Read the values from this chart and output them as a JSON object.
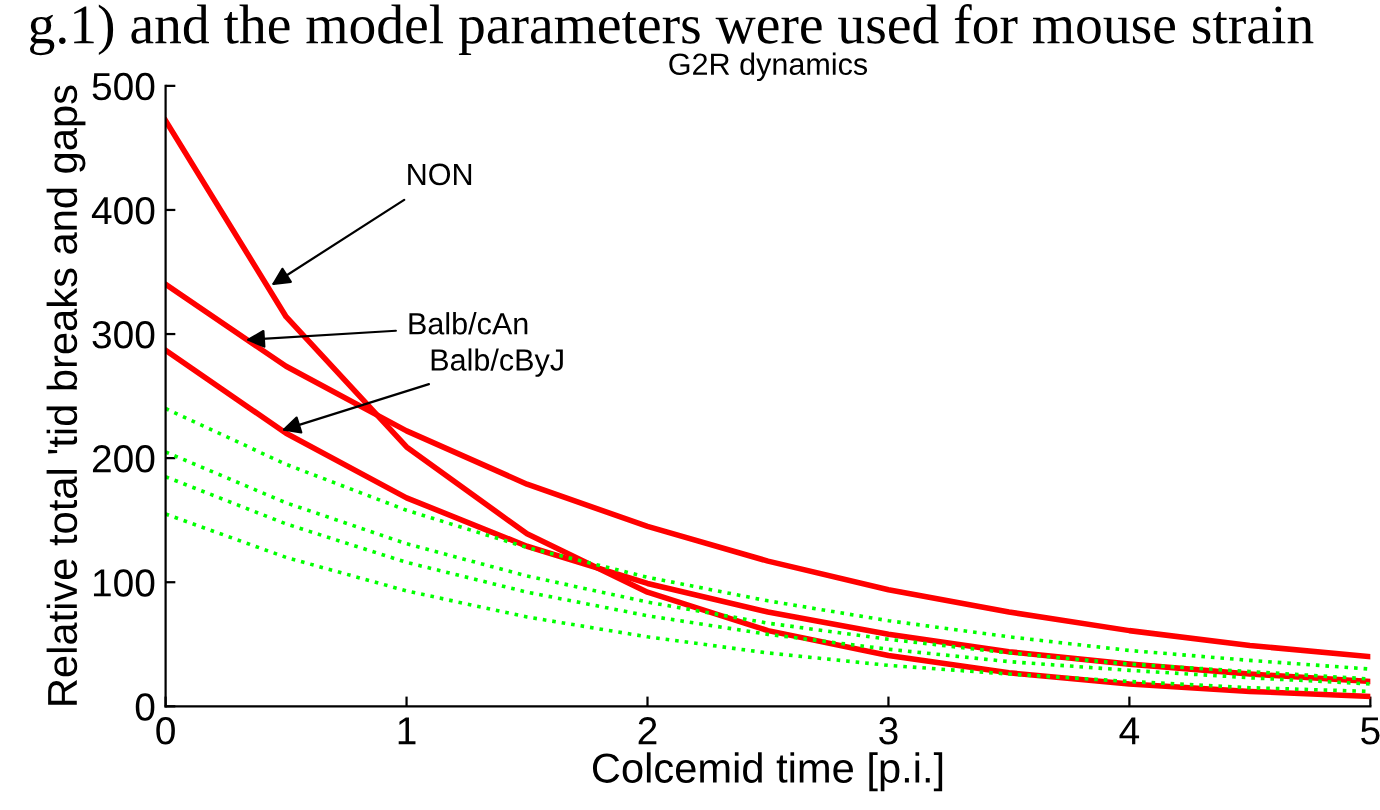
{
  "chart_data": {
    "type": "line",
    "title": "G2R dynamics",
    "xlabel": "Colcemid time [p.i.]",
    "ylabel": "Relative total 'tid breaks and gaps",
    "x": [
      0,
      0.5,
      1,
      1.5,
      2,
      2.5,
      3,
      3.5,
      4,
      4.5,
      5
    ],
    "series": [
      {
        "color": "#ff0000",
        "line_style": "solid",
        "values": [
          472,
          314,
          209,
          139,
          92,
          61,
          41,
          27,
          18,
          12,
          8
        ]
      },
      {
        "color": "#ff0000",
        "line_style": "solid",
        "values": [
          340,
          274,
          222,
          179,
          145,
          117,
          94,
          76,
          61,
          49,
          40
        ]
      },
      {
        "color": "#ff0000",
        "line_style": "solid",
        "values": [
          287,
          220,
          168,
          129,
          99,
          76,
          58,
          44,
          34,
          26,
          20
        ]
      },
      {
        "color": "#00ff00",
        "line_style": "dotted",
        "values": [
          240,
          195,
          158,
          128,
          104,
          85,
          69,
          56,
          45,
          37,
          30
        ]
      },
      {
        "color": "#00ff00",
        "line_style": "dotted",
        "values": [
          205,
          164,
          131,
          105,
          84,
          67,
          54,
          43,
          34,
          28,
          22
        ]
      },
      {
        "color": "#00ff00",
        "line_style": "dotted",
        "values": [
          185,
          147,
          116,
          92,
          73,
          58,
          46,
          36,
          29,
          23,
          18
        ]
      },
      {
        "color": "#00ff00",
        "line_style": "dotted",
        "values": [
          155,
          120,
          93,
          72,
          56,
          43,
          33,
          26,
          20,
          15,
          12
        ]
      }
    ],
    "xlim": [
      0,
      5
    ],
    "xticks": [
      0,
      1,
      2,
      3,
      4,
      5
    ],
    "ylim": [
      0,
      500
    ],
    "yticks": [
      0,
      100,
      200,
      300,
      400,
      500
    ],
    "grid": false,
    "legend": false,
    "annotations": [
      "g.1) and the model parameters were used for mouse strain",
      {
        "text": "NON",
        "x": 0.42,
        "y": 337
      },
      {
        "text": "Balb/cAn",
        "x": 0.31,
        "y": 295
      },
      {
        "text": "Balb/cByJ",
        "x": 0.46,
        "y": 221
      }
    ]
  }
}
